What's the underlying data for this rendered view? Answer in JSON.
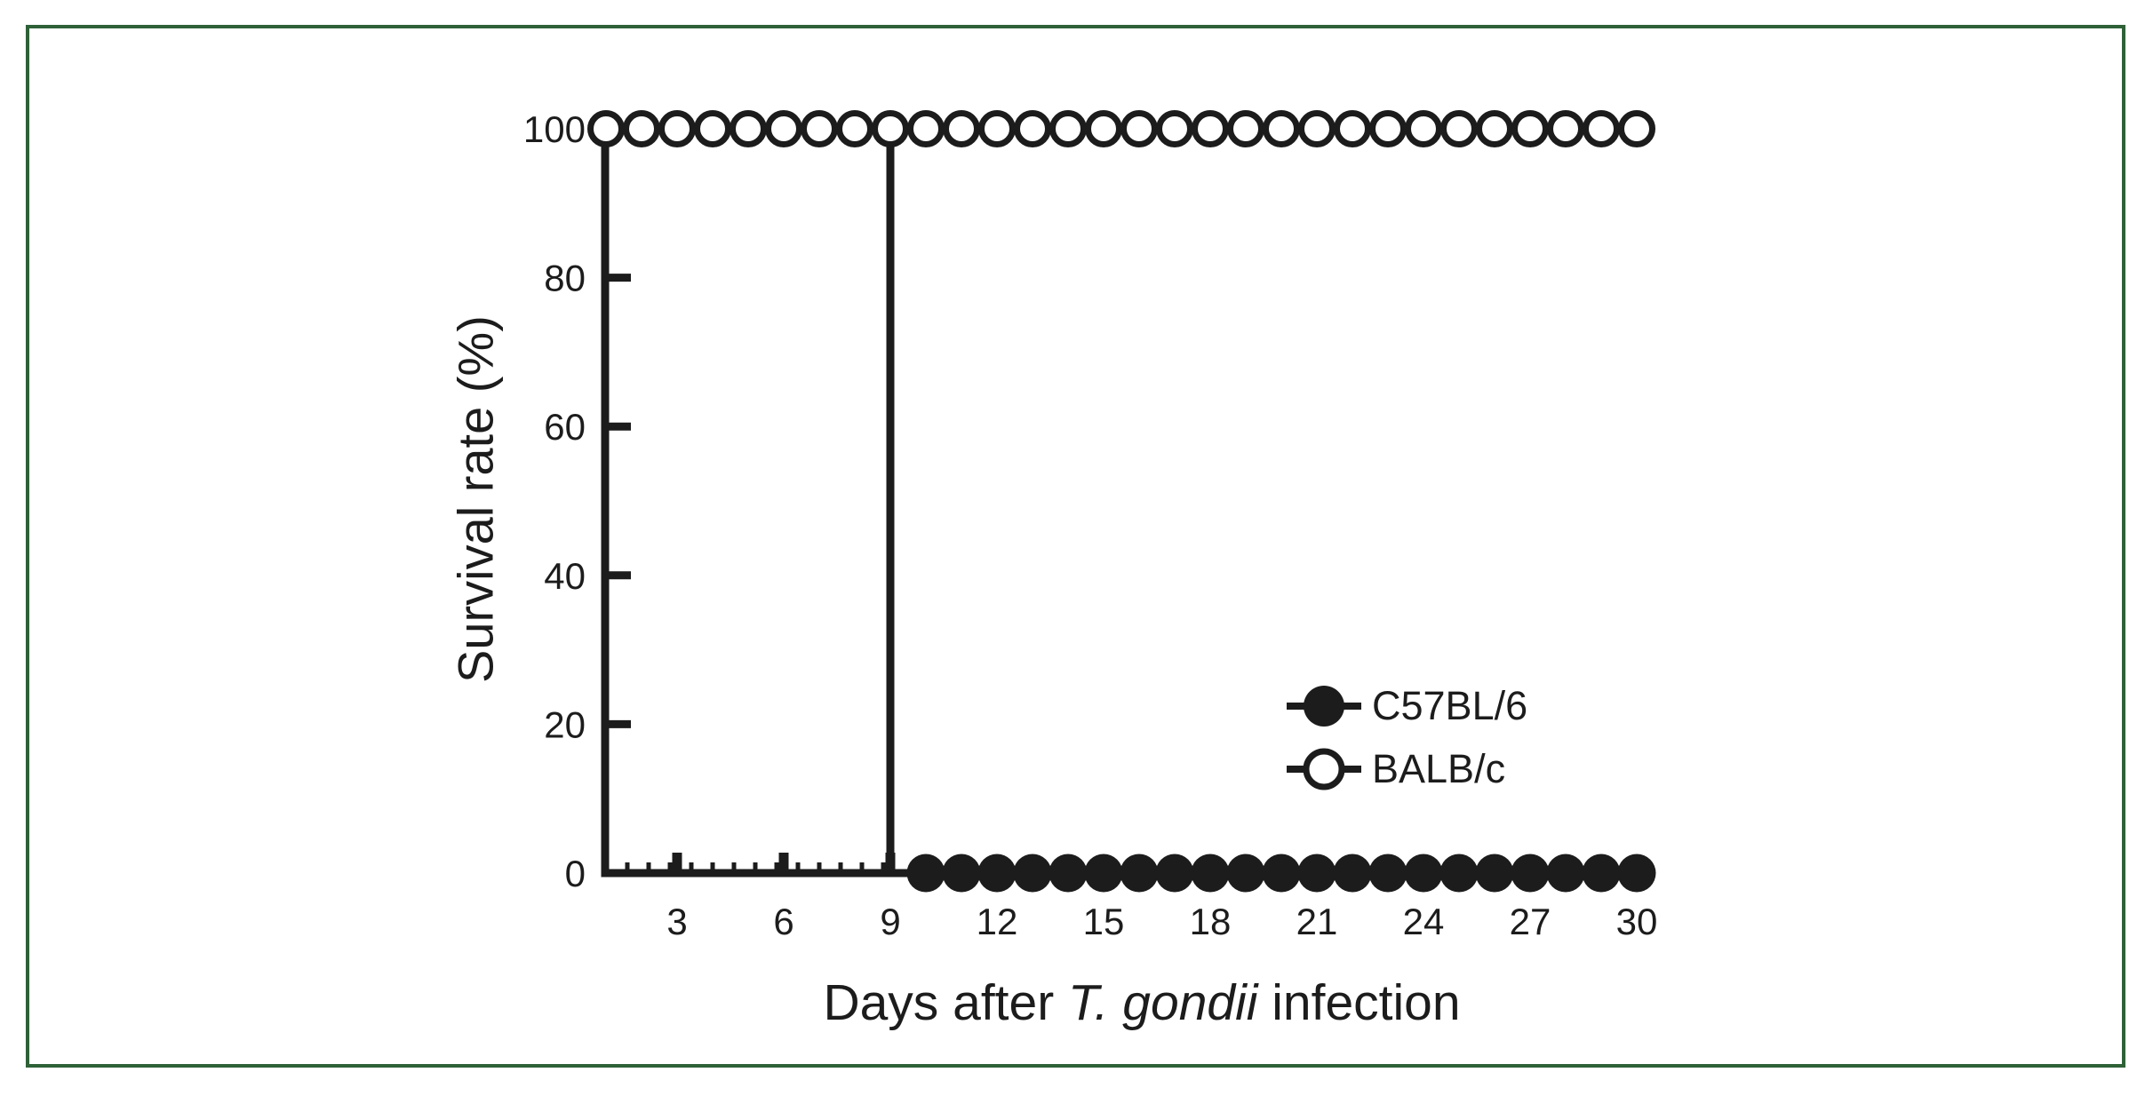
{
  "figure": {
    "border_color": "#2e6137",
    "background_color": "#ffffff",
    "ink_color": "#1c1c1c"
  },
  "chart_data": {
    "type": "line",
    "title": "",
    "ylabel": "Survival rate (%)",
    "xlabel_parts": {
      "prefix": "Days after ",
      "italic": "T. gondii",
      "suffix": " infection"
    },
    "x_range": [
      1,
      30
    ],
    "y_range": [
      0,
      100
    ],
    "x_ticks_major": [
      3,
      6,
      9,
      12,
      15,
      18,
      21,
      24,
      27,
      30
    ],
    "x_minor_step": 0.6,
    "x_minor_visible_to": 9,
    "y_ticks": [
      0,
      20,
      40,
      60,
      80,
      100
    ],
    "grid": "off",
    "legend_position": "right-center",
    "series": [
      {
        "name": "C57BL/6",
        "marker": "filled",
        "color": "#1c1c1c",
        "line": [
          [
            1,
            100
          ],
          [
            9,
            100
          ],
          [
            9,
            0
          ],
          [
            30,
            0
          ]
        ],
        "markers": {
          "days_from": 10,
          "days_to": 30,
          "value": 0
        },
        "summary": "100% survival days 1-9, drops to 0% at day 9, 0% days 10-30"
      },
      {
        "name": "BALB/c",
        "marker": "open",
        "color": "#1c1c1c",
        "line": [
          [
            1,
            100
          ],
          [
            30,
            100
          ]
        ],
        "markers": {
          "days_from": 1,
          "days_to": 30,
          "value": 100
        },
        "summary": "100% survival for all days 1-30"
      }
    ],
    "legend": {
      "entries": [
        {
          "label": "C57BL/6",
          "marker": "filled"
        },
        {
          "label": "BALB/c",
          "marker": "open"
        }
      ]
    }
  }
}
